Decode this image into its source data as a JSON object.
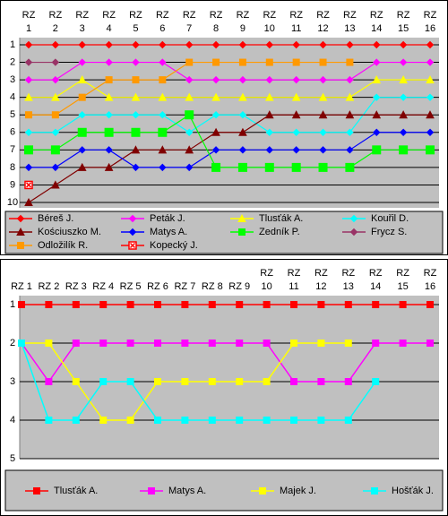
{
  "chart_data": [
    {
      "type": "line",
      "categories": [
        "RZ 1",
        "RZ 2",
        "RZ 3",
        "RZ 4",
        "RZ 5",
        "RZ 6",
        "RZ 7",
        "RZ 8",
        "RZ 9",
        "RZ 10",
        "RZ 11",
        "RZ 12",
        "RZ 13",
        "RZ 14",
        "RZ 15",
        "RZ 16"
      ],
      "ylim": [
        10,
        1
      ],
      "yticks": [
        1,
        2,
        3,
        4,
        5,
        6,
        7,
        8,
        9,
        10
      ],
      "grid": true,
      "series": [
        {
          "name": "Béreš J.",
          "color": "#ff0000",
          "marker": "diamond",
          "values": [
            1,
            1,
            1,
            1,
            1,
            1,
            1,
            1,
            1,
            1,
            1,
            1,
            1,
            1,
            1,
            1
          ]
        },
        {
          "name": "Peták J.",
          "color": "#ff00ff",
          "marker": "diamond",
          "values": [
            3,
            3,
            2,
            2,
            2,
            2,
            3,
            3,
            3,
            3,
            3,
            3,
            3,
            2,
            2,
            2
          ]
        },
        {
          "name": "Tlusťák A.",
          "color": "#ffff00",
          "marker": "triangle",
          "values": [
            4,
            4,
            3,
            4,
            4,
            4,
            4,
            4,
            4,
            4,
            4,
            4,
            4,
            3,
            3,
            3
          ]
        },
        {
          "name": "Kouřil D.",
          "color": "#00ffff",
          "marker": "diamond",
          "values": [
            6,
            6,
            5,
            5,
            5,
            5,
            6,
            5,
            5,
            6,
            6,
            6,
            6,
            4,
            4,
            4
          ]
        },
        {
          "name": "Kościuszko M.",
          "color": "#800000",
          "marker": "triangle",
          "values": [
            10,
            9,
            8,
            8,
            7,
            7,
            7,
            6,
            6,
            5,
            5,
            5,
            5,
            5,
            5,
            5
          ]
        },
        {
          "name": "Matys A.",
          "color": "#0000ff",
          "marker": "diamond",
          "values": [
            8,
            8,
            7,
            7,
            8,
            8,
            8,
            7,
            7,
            7,
            7,
            7,
            7,
            6,
            6,
            6
          ]
        },
        {
          "name": "Zedník P.",
          "color": "#00ff00",
          "marker": "square",
          "values": [
            7,
            7,
            6,
            6,
            6,
            6,
            5,
            8,
            8,
            8,
            8,
            8,
            8,
            7,
            7,
            7
          ]
        },
        {
          "name": "Frycz S.",
          "color": "#993366",
          "marker": "diamond",
          "values": [
            2,
            2,
            null,
            null,
            null,
            null,
            null,
            null,
            null,
            null,
            null,
            null,
            null,
            null,
            null,
            null
          ]
        },
        {
          "name": "Odložilík R.",
          "color": "#ff9900",
          "marker": "square",
          "values": [
            5,
            5,
            4,
            3,
            3,
            3,
            2,
            2,
            2,
            2,
            2,
            2,
            2,
            null,
            null,
            null
          ]
        },
        {
          "name": "Kopecký J.",
          "color": "#ff0000",
          "marker": "square-x",
          "values": [
            9,
            null,
            null,
            null,
            null,
            null,
            null,
            null,
            null,
            null,
            null,
            null,
            null,
            null,
            null,
            null
          ]
        }
      ]
    },
    {
      "type": "line",
      "categories": [
        "RZ 1",
        "RZ 2",
        "RZ 3",
        "RZ 4",
        "RZ 5",
        "RZ 6",
        "RZ 7",
        "RZ 8",
        "RZ 9",
        "RZ 10",
        "RZ 11",
        "RZ 12",
        "RZ 13",
        "RZ 14",
        "RZ 15",
        "RZ 16"
      ],
      "ylim": [
        5,
        1
      ],
      "yticks": [
        1,
        2,
        3,
        4,
        5
      ],
      "grid": true,
      "series": [
        {
          "name": "Tlusťák A.",
          "color": "#ff0000",
          "marker": "square",
          "values": [
            1,
            1,
            1,
            1,
            1,
            1,
            1,
            1,
            1,
            1,
            1,
            1,
            1,
            1,
            1,
            1
          ]
        },
        {
          "name": "Matys A.",
          "color": "#ff00ff",
          "marker": "square",
          "values": [
            2,
            3,
            2,
            2,
            2,
            2,
            2,
            2,
            2,
            2,
            3,
            3,
            3,
            2,
            2,
            2
          ]
        },
        {
          "name": "Majek J.",
          "color": "#ffff00",
          "marker": "square",
          "values": [
            2,
            2,
            3,
            4,
            4,
            3,
            3,
            3,
            3,
            3,
            2,
            2,
            2,
            null,
            null,
            null
          ]
        },
        {
          "name": "Hošťák J.",
          "color": "#00ffff",
          "marker": "square",
          "values": [
            2,
            4,
            4,
            3,
            3,
            4,
            4,
            4,
            4,
            4,
            4,
            4,
            4,
            3,
            null,
            null
          ]
        }
      ]
    }
  ]
}
